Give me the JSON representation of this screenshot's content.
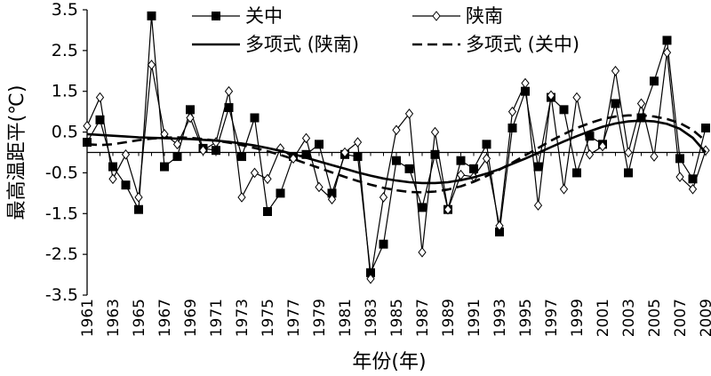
{
  "chart_data": {
    "type": "line",
    "xlabel": "年份(年)",
    "ylabel": "最高温距平(℃)",
    "ylim": [
      -3.5,
      3.5
    ],
    "y_ticks": [
      "3.5",
      "2.5",
      "1.5",
      "0.5",
      "-0.5",
      "-1.5",
      "-2.5",
      "-3.5"
    ],
    "x": [
      1961,
      1962,
      1963,
      1964,
      1965,
      1966,
      1967,
      1968,
      1969,
      1970,
      1971,
      1972,
      1973,
      1974,
      1975,
      1976,
      1977,
      1978,
      1979,
      1980,
      1981,
      1982,
      1983,
      1984,
      1985,
      1986,
      1987,
      1988,
      1989,
      1990,
      1991,
      1992,
      1993,
      1994,
      1995,
      1996,
      1997,
      1998,
      1999,
      2000,
      2001,
      2002,
      2003,
      2004,
      2005,
      2006,
      2007,
      2008,
      2009
    ],
    "x_ticks": [
      "1961",
      "1963",
      "1965",
      "1967",
      "1969",
      "1971",
      "1973",
      "1975",
      "1977",
      "1979",
      "1981",
      "1983",
      "1985",
      "1987",
      "1989",
      "1991",
      "1993",
      "1995",
      "1997",
      "1999",
      "2001",
      "2003",
      "2005",
      "2007",
      "2009"
    ],
    "series": [
      {
        "name": "关中",
        "style": "line-square",
        "values": [
          0.25,
          0.8,
          -0.35,
          -0.8,
          -1.4,
          3.35,
          -0.35,
          -0.1,
          1.05,
          0.1,
          0.05,
          1.1,
          -0.1,
          0.85,
          -1.45,
          -1.0,
          -0.1,
          -0.05,
          0.2,
          -1.0,
          -0.05,
          -0.1,
          -2.95,
          -2.25,
          -0.2,
          -0.4,
          -1.35,
          -0.05,
          -1.4,
          -0.2,
          -0.4,
          0.2,
          -1.95,
          0.6,
          1.5,
          -0.35,
          1.35,
          1.05,
          -0.5,
          0.4,
          0.2,
          1.2,
          -0.5,
          0.85,
          1.75,
          2.75,
          -0.15,
          -0.65,
          0.6
        ]
      },
      {
        "name": "陕南",
        "style": "line-diamond",
        "values": [
          0.65,
          1.35,
          -0.65,
          -0.05,
          -1.1,
          2.15,
          0.45,
          0.2,
          0.85,
          0.05,
          0.25,
          1.5,
          -1.1,
          -0.5,
          -0.65,
          0.1,
          -0.15,
          0.35,
          -0.85,
          -1.15,
          0.0,
          0.25,
          -3.1,
          -1.1,
          0.55,
          0.95,
          -2.45,
          0.5,
          -1.4,
          -0.55,
          -0.6,
          -0.15,
          -1.8,
          1.0,
          1.7,
          -1.3,
          1.4,
          -0.9,
          1.35,
          -0.05,
          0.15,
          2.0,
          0.0,
          1.2,
          -0.1,
          2.45,
          -0.6,
          -0.9,
          0.05
        ]
      },
      {
        "name": "多项式 (陕南)",
        "style": "solid",
        "values": [
          0.45,
          0.43,
          0.41,
          0.39,
          0.37,
          0.36,
          0.35,
          0.34,
          0.33,
          0.31,
          0.29,
          0.26,
          0.22,
          0.17,
          0.11,
          0.04,
          -0.04,
          -0.13,
          -0.22,
          -0.31,
          -0.4,
          -0.49,
          -0.57,
          -0.64,
          -0.69,
          -0.73,
          -0.75,
          -0.75,
          -0.73,
          -0.68,
          -0.61,
          -0.52,
          -0.41,
          -0.28,
          -0.15,
          -0.01,
          0.13,
          0.27,
          0.4,
          0.52,
          0.63,
          0.71,
          0.76,
          0.78,
          0.76,
          0.7,
          0.58,
          0.36,
          0.0
        ]
      },
      {
        "name": "多项式 (关中)",
        "style": "dashed",
        "values": [
          0.2,
          0.18,
          0.2,
          0.25,
          0.3,
          0.34,
          0.36,
          0.37,
          0.36,
          0.33,
          0.29,
          0.24,
          0.18,
          0.11,
          0.03,
          -0.06,
          -0.16,
          -0.27,
          -0.38,
          -0.49,
          -0.6,
          -0.7,
          -0.79,
          -0.87,
          -0.93,
          -0.97,
          -0.98,
          -0.96,
          -0.91,
          -0.83,
          -0.72,
          -0.58,
          -0.42,
          -0.25,
          -0.07,
          0.11,
          0.29,
          0.45,
          0.6,
          0.72,
          0.82,
          0.88,
          0.91,
          0.91,
          0.88,
          0.82,
          0.72,
          0.55,
          0.28
        ]
      }
    ],
    "legend_placement": "top"
  }
}
